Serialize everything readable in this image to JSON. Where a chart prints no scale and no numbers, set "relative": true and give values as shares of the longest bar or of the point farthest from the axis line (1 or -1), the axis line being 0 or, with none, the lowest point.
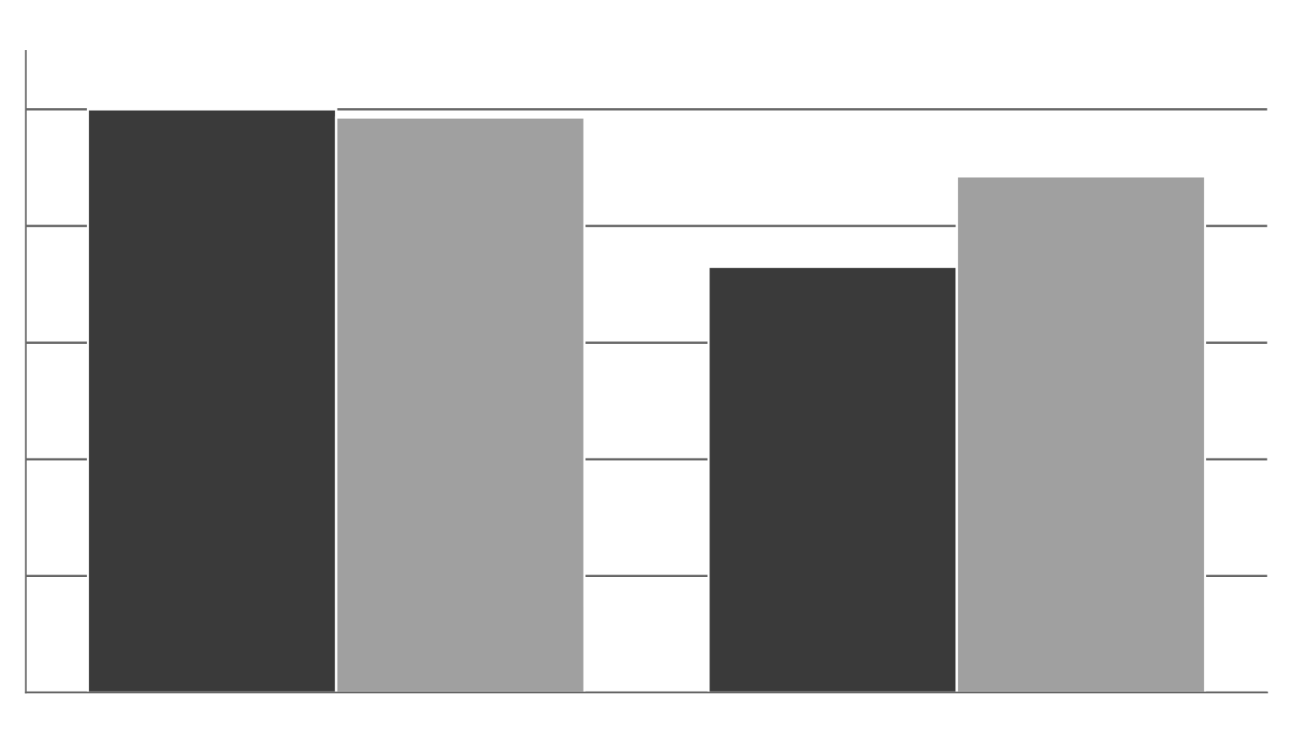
{
  "chart_data": {
    "type": "bar",
    "relative": true,
    "categories": [
      null,
      null
    ],
    "grid": "y",
    "series": [
      {
        "color": "#3a3a3a",
        "values": [
          1,
          0.73
        ]
      },
      {
        "color": "#a0a0a0",
        "values": [
          0.986,
          0.885
        ]
      }
    ]
  }
}
